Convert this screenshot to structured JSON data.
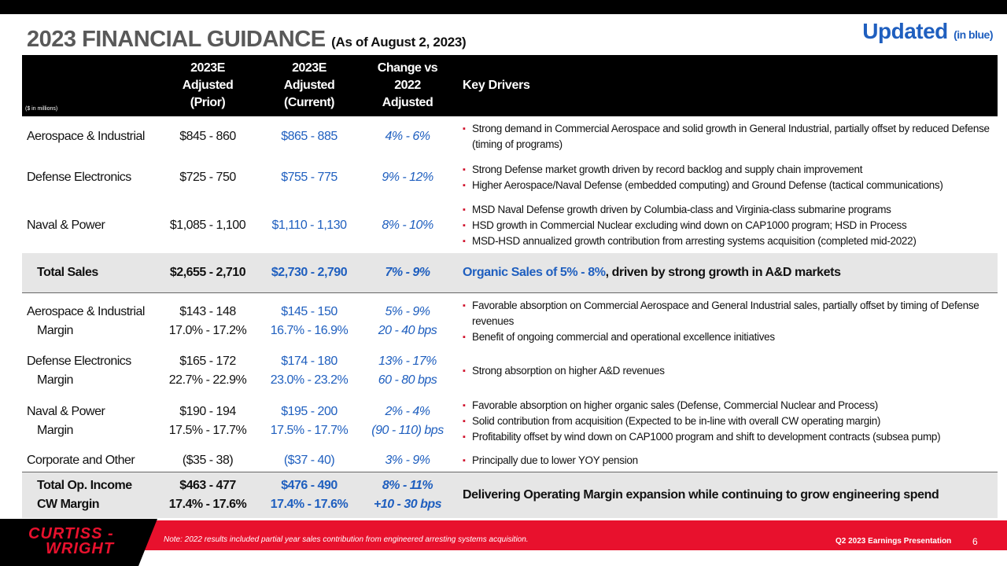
{
  "header": {
    "title": "2023 FINANCIAL GUIDANCE",
    "subtitle": "(As of August 2, 2023)",
    "updated": "Updated",
    "updated_note": "(in blue)"
  },
  "table": {
    "units": "($ in millions)",
    "columns": [
      [
        "2023E",
        "Adjusted",
        "(Prior)"
      ],
      [
        "2023E",
        "Adjusted",
        "(Current)"
      ],
      [
        "Change vs",
        "2022",
        "Adjusted"
      ],
      [
        "Key Drivers"
      ]
    ],
    "rows": [
      {
        "label": [
          "Aerospace & Industrial"
        ],
        "prior": [
          "$845 - 860"
        ],
        "current": [
          "$865 - 885"
        ],
        "change": [
          "4% - 6%"
        ],
        "drivers": [
          "Strong demand in Commercial Aerospace and solid growth in General Industrial, partially offset by reduced Defense (timing of programs)"
        ]
      },
      {
        "label": [
          "Defense Electronics"
        ],
        "prior": [
          "$725 - 750"
        ],
        "current": [
          "$755 - 775"
        ],
        "change": [
          "9% - 12%"
        ],
        "drivers": [
          "Strong Defense market growth driven by record backlog and supply chain improvement",
          "Higher Aerospace/Naval Defense (embedded computing) and Ground Defense (tactical communications)"
        ]
      },
      {
        "label": [
          "Naval & Power"
        ],
        "prior": [
          "$1,085 - 1,100"
        ],
        "current": [
          "$1,110 - 1,130"
        ],
        "change": [
          "8% - 10%"
        ],
        "drivers": [
          "MSD Naval Defense growth driven by Columbia-class and Virginia-class submarine programs",
          "HSD growth in Commercial Nuclear excluding wind down on CAP1000 program; HSD in Process",
          "MSD-HSD annualized growth contribution from arresting systems acquisition (completed mid-2022)"
        ]
      },
      {
        "label": [
          "Total Sales"
        ],
        "prior": [
          "$2,655 - 2,710"
        ],
        "current": [
          "$2,730 - 2,790"
        ],
        "change": [
          "7% - 9%"
        ],
        "drivers_text": [
          "Organic Sales of 5% - 8%",
          ", driven by strong growth in A&D markets"
        ]
      },
      {
        "label": [
          "Aerospace & Industrial",
          "Margin"
        ],
        "prior": [
          "$143 - 148",
          "17.0% - 17.2%"
        ],
        "current": [
          "$145 - 150",
          "16.7% - 16.9%"
        ],
        "change": [
          "5% - 9%",
          "20 - 40 bps"
        ],
        "drivers": [
          "Favorable absorption on Commercial Aerospace and General Industrial sales, partially offset by timing of Defense revenues",
          "Benefit of ongoing commercial and operational excellence initiatives"
        ]
      },
      {
        "label": [
          "Defense Electronics",
          "Margin"
        ],
        "prior": [
          "$165 - 172",
          "22.7% - 22.9%"
        ],
        "current": [
          "$174 - 180",
          "23.0% - 23.2%"
        ],
        "change": [
          "13% - 17%",
          "60 - 80 bps"
        ],
        "drivers": [
          "Strong absorption on higher A&D revenues"
        ]
      },
      {
        "label": [
          "Naval & Power",
          "Margin"
        ],
        "prior": [
          "$190 - 194",
          "17.5% - 17.7%"
        ],
        "current": [
          "$195 - 200",
          "17.5% - 17.7%"
        ],
        "change": [
          "2% - 4%",
          "(90 - 110) bps"
        ],
        "drivers": [
          "Favorable absorption on higher organic sales (Defense, Commercial Nuclear and Process)",
          "Solid contribution from acquisition (Expected to be in-line with overall CW operating margin)",
          "Profitability offset by wind down on CAP1000 program and shift to development contracts (subsea pump)"
        ]
      },
      {
        "label": [
          "Corporate and Other"
        ],
        "prior": [
          "($35 - 38)"
        ],
        "current": [
          "($37 - 40)"
        ],
        "change": [
          "3% - 9%"
        ],
        "drivers": [
          "Principally due to lower YOY pension"
        ]
      },
      {
        "label": [
          "Total Op. Income",
          "CW Margin"
        ],
        "prior": [
          "$463 - 477",
          "17.4% - 17.6%"
        ],
        "current": [
          "$476 - 490",
          "17.4% - 17.6%"
        ],
        "change": [
          "8% - 11%",
          "+10 - 30 bps"
        ],
        "drivers_text": [
          "Delivering Operating Margin expansion while continuing to grow engineering spend"
        ]
      }
    ]
  },
  "footer": {
    "brand": [
      "CURTISS -",
      "WRIGHT"
    ],
    "note": "Note: 2022 results included partial year sales contribution from engineered arresting systems acquisition.",
    "presentation": "Q2 2023 Earnings Presentation",
    "page": "6"
  }
}
